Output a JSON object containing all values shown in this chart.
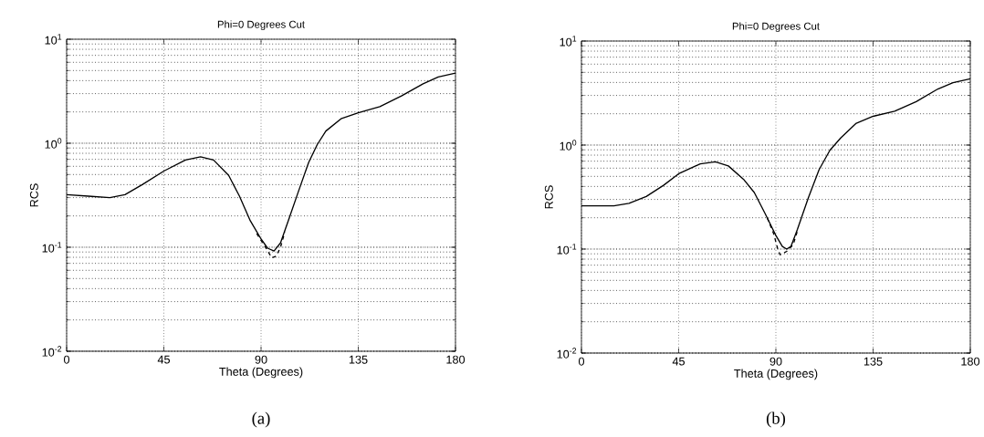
{
  "chart_data": [
    {
      "type": "line",
      "title": "Phi=0 Degrees Cut",
      "xlabel": "Theta (Degrees)",
      "ylabel": "RCS",
      "log": "y",
      "grid": true,
      "xlim": [
        0,
        180
      ],
      "xticks": [
        0,
        45,
        90,
        135,
        180
      ],
      "ylim": [
        0.01,
        10
      ],
      "yticks": [
        {
          "value": 0.01,
          "label": "10$^{-2}$"
        },
        {
          "value": 0.1,
          "label": "10$^{-1}$"
        },
        {
          "value": 1,
          "label": "10$^{0}$"
        },
        {
          "value": 10,
          "label": "10$^{1}$"
        }
      ],
      "annotations": [
        "(a)"
      ],
      "series": [
        {
          "color": "#000000",
          "line_style": "solid",
          "x": [
            0,
            10,
            20,
            27,
            35,
            45,
            55,
            62,
            68,
            75,
            80,
            85,
            90,
            93,
            96,
            99,
            103,
            107,
            112,
            116,
            120,
            127,
            135,
            145,
            155,
            165,
            172,
            180
          ],
          "values": [
            0.32,
            0.31,
            0.3,
            0.32,
            0.4,
            0.54,
            0.69,
            0.74,
            0.69,
            0.49,
            0.31,
            0.18,
            0.12,
            0.098,
            0.092,
            0.11,
            0.19,
            0.33,
            0.65,
            0.97,
            1.31,
            1.72,
            1.96,
            2.25,
            2.85,
            3.73,
            4.33,
            4.72
          ]
        },
        {
          "color": "#000000",
          "line_style": "dashed",
          "x": [
            88,
            92,
            95,
            97,
            99,
            101
          ],
          "values": [
            0.135,
            0.1,
            0.079,
            0.082,
            0.1,
            0.14
          ]
        }
      ]
    },
    {
      "type": "line",
      "title": "Phi=0 Degrees Cut",
      "xlabel": "Theta (Degrees)",
      "ylabel": "RCS",
      "log": "y",
      "grid": true,
      "xlim": [
        0,
        180
      ],
      "xticks": [
        0,
        45,
        90,
        135,
        180
      ],
      "ylim": [
        0.01,
        10
      ],
      "yticks": [
        {
          "value": 0.01,
          "label": "10$^{-2}$"
        },
        {
          "value": 0.1,
          "label": "10$^{-1}$"
        },
        {
          "value": 1,
          "label": "10$^{0}$"
        },
        {
          "value": 10,
          "label": "10$^{1}$"
        }
      ],
      "annotations": [
        "(b)"
      ],
      "series": [
        {
          "color": "#000000",
          "line_style": "solid",
          "x": [
            0,
            15,
            22,
            30,
            38,
            45,
            55,
            62,
            68,
            75,
            80,
            85,
            90,
            93,
            95,
            97,
            100,
            105,
            110,
            115,
            120,
            127,
            135,
            145,
            155,
            165,
            172,
            180
          ],
          "values": [
            0.26,
            0.26,
            0.275,
            0.32,
            0.41,
            0.53,
            0.66,
            0.69,
            0.63,
            0.47,
            0.35,
            0.22,
            0.135,
            0.106,
            0.1,
            0.106,
            0.155,
            0.31,
            0.58,
            0.89,
            1.17,
            1.61,
            1.89,
            2.12,
            2.62,
            3.46,
            3.98,
            4.33
          ]
        },
        {
          "color": "#000000",
          "line_style": "dashed",
          "x": [
            86,
            89,
            91,
            92,
            95,
            98,
            100
          ],
          "values": [
            0.2,
            0.14,
            0.098,
            0.088,
            0.095,
            0.11,
            0.15
          ]
        }
      ]
    }
  ]
}
